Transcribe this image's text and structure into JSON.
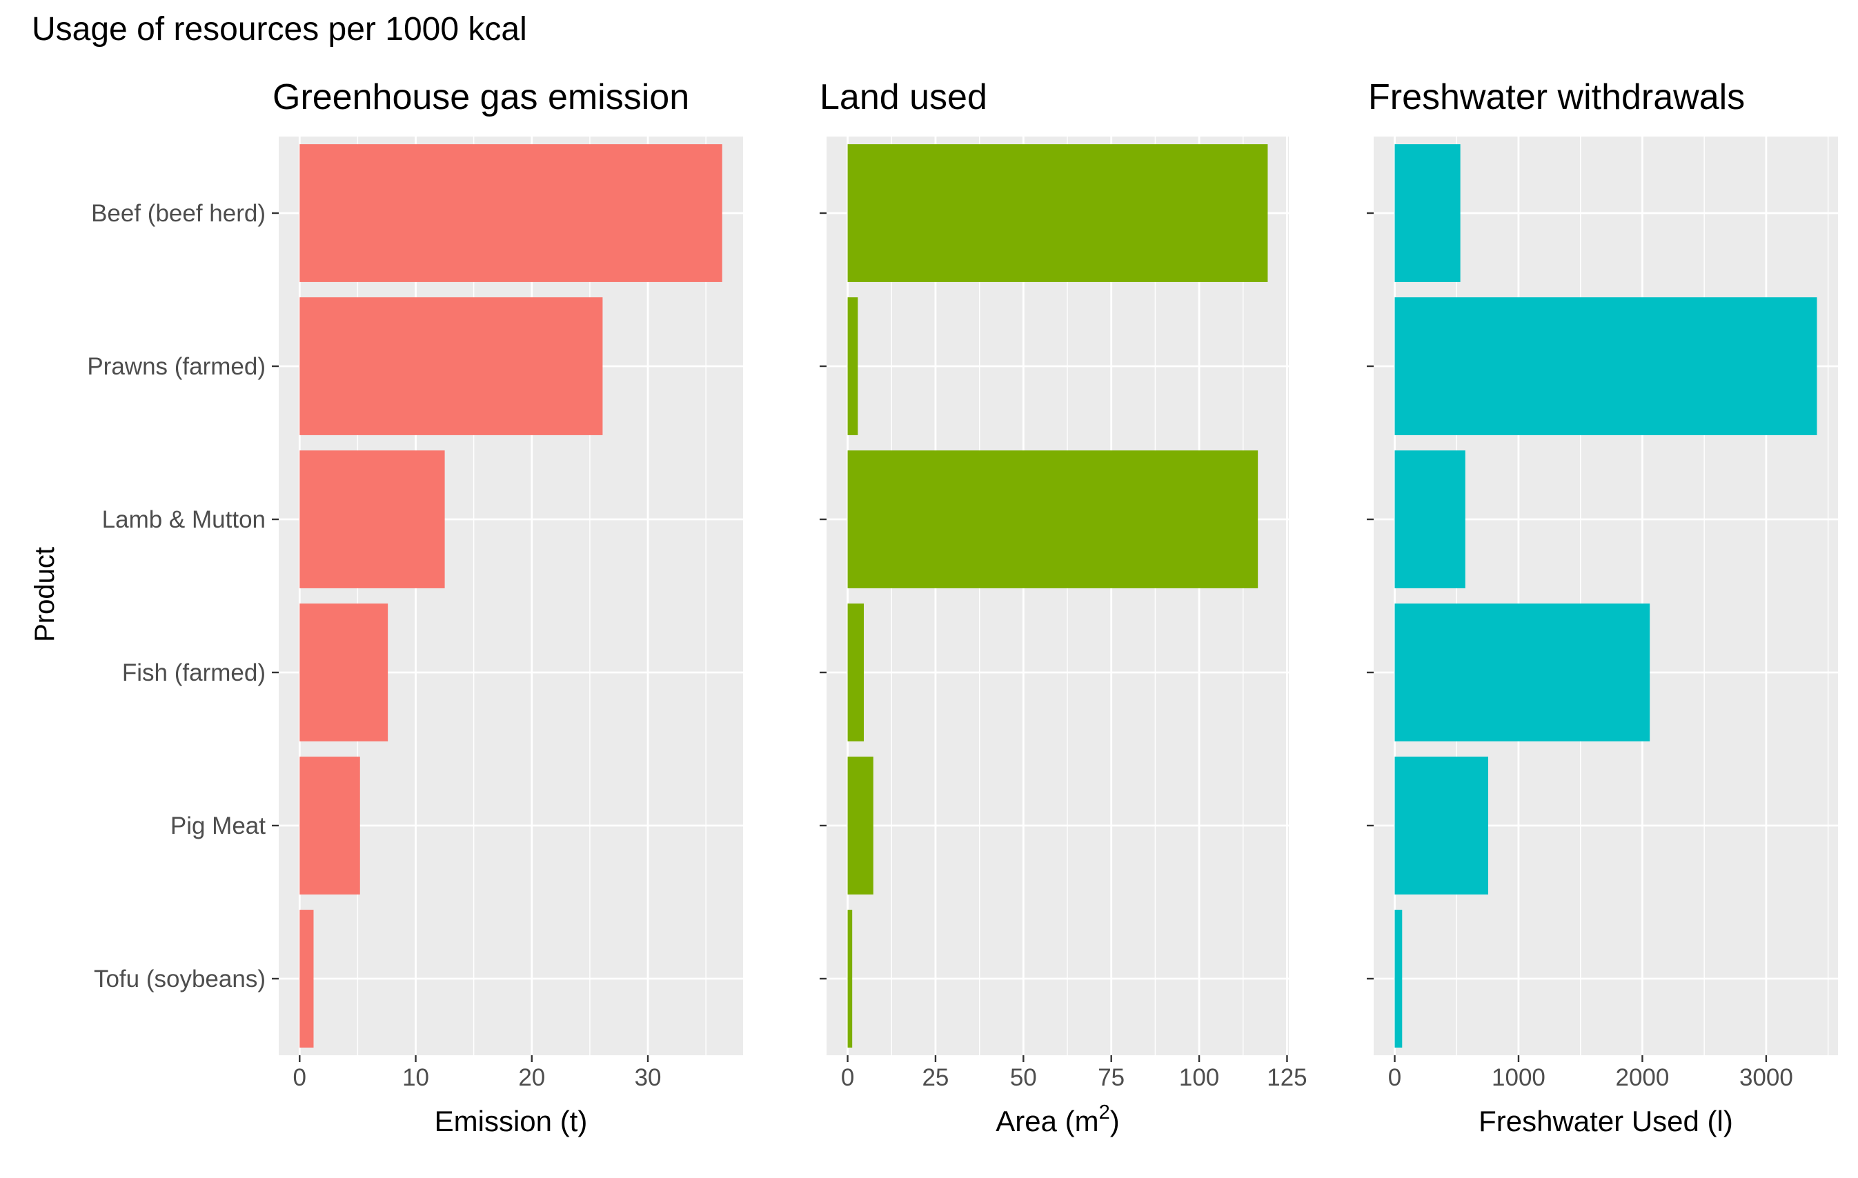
{
  "title": "Usage of resources per 1000 kcal",
  "y_axis_label": "Product",
  "chart_data": [
    {
      "type": "bar",
      "orientation": "horizontal",
      "title": "Greenhouse gas emission",
      "xlabel": "Emission (t)",
      "xlabel_superscript": "",
      "xlabel_suffix": "",
      "ylabel": "Product",
      "color": "#F8766D",
      "categories": [
        "Tofu (soybeans)",
        "Pig Meat",
        "Fish (farmed)",
        "Lamb & Mutton",
        "Prawns (farmed)",
        "Beef (beef herd)"
      ],
      "values": [
        1.2,
        5.2,
        7.6,
        12.5,
        26.1,
        36.4
      ],
      "xlim": [
        -1.8,
        38.2
      ],
      "xticks": [
        0,
        10,
        20,
        30
      ],
      "xtick_labels": [
        "0",
        "10",
        "20",
        "30"
      ],
      "grid": true
    },
    {
      "type": "bar",
      "orientation": "horizontal",
      "title": "Land used",
      "xlabel": "Area (m",
      "xlabel_superscript": "2",
      "xlabel_suffix": ")",
      "ylabel": "Product",
      "color": "#7CAE00",
      "categories": [
        "Tofu (soybeans)",
        "Pig Meat",
        "Fish (farmed)",
        "Lamb & Mutton",
        "Prawns (farmed)",
        "Beef (beef herd)"
      ],
      "values": [
        1.3,
        7.3,
        4.6,
        116.7,
        2.9,
        119.5
      ],
      "xlim": [
        -6,
        125.5
      ],
      "xticks": [
        0,
        25,
        50,
        75,
        100,
        125
      ],
      "xtick_labels": [
        "0",
        "25",
        "50",
        "75",
        "100",
        "125"
      ],
      "grid": true
    },
    {
      "type": "bar",
      "orientation": "horizontal",
      "title": "Freshwater withdrawals",
      "xlabel": "Freshwater Used (l)",
      "xlabel_superscript": "",
      "xlabel_suffix": "",
      "ylabel": "Product",
      "color": "#00BFC4",
      "categories": [
        "Tofu (soybeans)",
        "Pig Meat",
        "Fish (farmed)",
        "Lamb & Mutton",
        "Prawns (farmed)",
        "Beef (beef herd)"
      ],
      "values": [
        60,
        755,
        2060,
        570,
        3410,
        530
      ],
      "xlim": [
        -170,
        3580
      ],
      "xticks": [
        0,
        1000,
        2000,
        3000
      ],
      "xtick_labels": [
        "0",
        "1000",
        "2000",
        "3000"
      ],
      "grid": true
    }
  ]
}
